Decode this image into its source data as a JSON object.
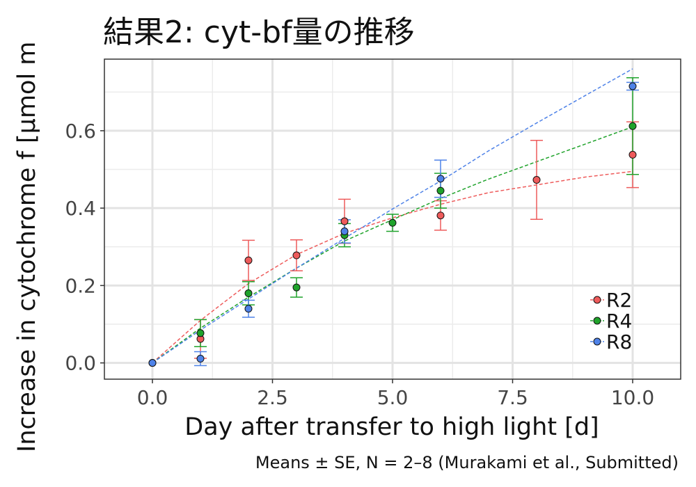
{
  "chart_data": {
    "type": "scatter",
    "title": "結果2: cyt-bf量の推移",
    "xlabel": "Day after transfer to high light [d]",
    "ylabel": "Increase in cytochrome f [μmol m",
    "caption": "Means ± SE, N = 2–8 (Murakami et al., Submitted)",
    "xlim": [
      -1,
      11.0
    ],
    "ylim": [
      -0.042,
      0.785
    ],
    "xticks": [
      0,
      2.5,
      5,
      7.5,
      10
    ],
    "xtick_labels": [
      "0.0",
      "2.5",
      "5.0",
      "7.5",
      "10.0"
    ],
    "yticks": [
      0,
      0.2,
      0.4,
      0.6
    ],
    "ytick_labels": [
      "0.0",
      "0.2",
      "0.4",
      "0.6"
    ],
    "grid": true,
    "legend_position": "bottom-right",
    "series": [
      {
        "name": "R2",
        "color": "#ee5b5b",
        "x": [
          0,
          1,
          2,
          3,
          4,
          6,
          8,
          10
        ],
        "y": [
          0,
          0.062,
          0.265,
          0.278,
          0.366,
          0.381,
          0.473,
          0.538
        ],
        "err": [
          0,
          0.05,
          0.052,
          0.04,
          0.057,
          0.038,
          0.102,
          0.085
        ],
        "fit_x": [
          0,
          1,
          2,
          3,
          4,
          5,
          6,
          7,
          8,
          9,
          10
        ],
        "fit_y": [
          0,
          0.11,
          0.205,
          0.28,
          0.335,
          0.375,
          0.41,
          0.44,
          0.46,
          0.48,
          0.495
        ]
      },
      {
        "name": "R4",
        "color": "#1fa32b",
        "x": [
          0,
          1,
          2,
          3,
          4,
          5,
          6,
          10
        ],
        "y": [
          0,
          0.077,
          0.18,
          0.195,
          0.33,
          0.362,
          0.445,
          0.612
        ],
        "err": [
          0,
          0.035,
          0.03,
          0.025,
          0.03,
          0.022,
          0.045,
          0.125
        ],
        "fit_x": [
          0,
          1,
          2,
          3,
          4,
          5,
          6,
          7,
          8,
          9,
          10
        ],
        "fit_y": [
          0,
          0.09,
          0.17,
          0.245,
          0.315,
          0.37,
          0.425,
          0.475,
          0.52,
          0.565,
          0.61
        ]
      },
      {
        "name": "R8",
        "color": "#4e82e8",
        "x": [
          0,
          1,
          2,
          4,
          6,
          10
        ],
        "y": [
          0,
          0.011,
          0.14,
          0.34,
          0.476,
          0.715
        ],
        "err": [
          0,
          0.018,
          0.022,
          0.03,
          0.048,
          0.01
        ],
        "fit_x": [
          0,
          1,
          2,
          3,
          4,
          5,
          6,
          7,
          8,
          9,
          10
        ],
        "fit_y": [
          0,
          0.085,
          0.165,
          0.245,
          0.322,
          0.398,
          0.47,
          0.548,
          0.62,
          0.69,
          0.76
        ]
      }
    ]
  }
}
